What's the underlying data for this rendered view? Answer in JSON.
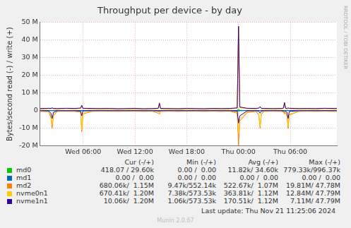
{
  "chart_data": {
    "type": "line",
    "title": "Throughput per device - by day",
    "y_label": "Bytes/second read (-) / write (+)",
    "side_text": "RRDTOOL / TOBI OETIKER",
    "last_update": "Last update: Thu Nov 21 11:25:06 2024",
    "footer": "Munin 2.0.67",
    "stats_headers": [
      "Cur (-/+)",
      "Min (-/+)",
      "Avg (-/+)",
      "Max (-/+)"
    ],
    "grid": true,
    "xlim": [
      1,
      35.4
    ],
    "xticks": [
      {
        "value": 6,
        "label": "Wed 06:00"
      },
      {
        "value": 12,
        "label": "Wed 12:00"
      },
      {
        "value": 18,
        "label": "Wed 18:00"
      },
      {
        "value": 24,
        "label": "Thu 00:00"
      },
      {
        "value": 30,
        "label": "Thu 06:00"
      }
    ],
    "ylim": [
      -20000000,
      50000000
    ],
    "yticks": [
      {
        "value": -20000000,
        "label": "-20 M"
      },
      {
        "value": -10000000,
        "label": "-10 M"
      },
      0,
      {
        "value": 10000000,
        "label": "10 M"
      },
      {
        "value": 20000000,
        "label": "20 M"
      },
      {
        "value": 30000000,
        "label": "30 M"
      },
      {
        "value": 40000000,
        "label": "40 M"
      },
      {
        "value": 50000000,
        "label": "50 M"
      }
    ],
    "x": [
      1,
      2,
      2.25,
      2.4,
      2.55,
      3,
      4,
      5,
      5.7,
      5.83,
      5.96,
      7,
      8,
      9,
      10,
      11,
      12,
      13,
      14,
      14.7,
      14.83,
      14.96,
      16,
      17,
      18,
      19,
      20,
      21,
      22,
      23,
      23.85,
      24,
      24.15,
      25,
      26,
      26.35,
      26.5,
      26.65,
      27,
      28,
      29,
      29.2,
      29.33,
      29.46,
      29.62,
      29.75,
      29.88,
      31,
      32,
      33,
      34,
      35,
      35.4
    ],
    "series": [
      {
        "name": "md0",
        "color": "#00CC00",
        "stats": [
          "418.07 / 29.60k",
          "0.00 /  0.00",
          "11.82k/ 34.60k",
          "779.33k/996.37k"
        ],
        "values": [
          30000.0,
          40000.0,
          30000.0,
          50000.0,
          30000.0,
          30000.0,
          40000.0,
          30000.0,
          40000.0,
          100000.0,
          30000.0,
          30000.0,
          40000.0,
          30000.0,
          30000.0,
          40000.0,
          30000.0,
          30000.0,
          40000.0,
          30000.0,
          80000.0,
          30000.0,
          30000.0,
          40000.0,
          30000.0,
          30000.0,
          40000.0,
          30000.0,
          30000.0,
          40000.0,
          50000.0,
          996000.0,
          100000.0,
          40000.0,
          30000.0,
          40000.0,
          80000.0,
          30000.0,
          30000.0,
          40000.0,
          30000.0,
          40000.0,
          100000.0,
          30000.0,
          30000.0,
          50000.0,
          30000.0,
          30000.0,
          40000.0,
          30000.0,
          30000.0,
          30000.0,
          30000.0
        ],
        "read": [
          -10000.0,
          -10000.0,
          -20000.0,
          -50000.0,
          -10000.0,
          -10000.0,
          -10000.0,
          -10000.0,
          -10000.0,
          -60000.0,
          -10000.0,
          -10000.0,
          -10000.0,
          -10000.0,
          -10000.0,
          -10000.0,
          -10000.0,
          -10000.0,
          -10000.0,
          -10000.0,
          -20000.0,
          -10000.0,
          -10000.0,
          -10000.0,
          -10000.0,
          -10000.0,
          -10000.0,
          -10000.0,
          -10000.0,
          -10000.0,
          -20000.0,
          -779000.0,
          -50000.0,
          -10000.0,
          -10000.0,
          -10000.0,
          -40000.0,
          -10000.0,
          -10000.0,
          -10000.0,
          -10000.0,
          -10000.0,
          -20000.0,
          -10000.0,
          -10000.0,
          -40000.0,
          -10000.0,
          -10000.0,
          -10000.0,
          -10000.0,
          -10000.0,
          -10000.0,
          -10000.0
        ]
      },
      {
        "name": "md1",
        "color": "#0066B3",
        "stats": [
          "0.00 /  0.00",
          "0.00 /  0.00",
          "0.00 /  0.00",
          "0.00 /  0.00"
        ],
        "values": [
          0,
          0,
          0,
          0,
          0,
          0,
          0,
          0,
          0,
          0,
          0,
          0,
          0,
          0,
          0,
          0,
          0,
          0,
          0,
          0,
          0,
          0,
          0,
          0,
          0,
          0,
          0,
          0,
          0,
          0,
          0,
          0,
          0,
          0,
          0,
          0,
          0,
          0,
          0,
          0,
          0,
          0,
          0,
          0,
          0,
          0,
          0,
          0,
          0,
          0,
          0,
          0,
          0
        ],
        "read": [
          0,
          0,
          0,
          0,
          0,
          0,
          0,
          0,
          0,
          0,
          0,
          0,
          0,
          0,
          0,
          0,
          0,
          0,
          0,
          0,
          0,
          0,
          0,
          0,
          0,
          0,
          0,
          0,
          0,
          0,
          0,
          0,
          0,
          0,
          0,
          0,
          0,
          0,
          0,
          0,
          0,
          0,
          0,
          0,
          0,
          0,
          0,
          0,
          0,
          0,
          0,
          0,
          0
        ]
      },
      {
        "name": "md2",
        "color": "#FF8000",
        "stats": [
          "680.06k/  1.15M",
          "9.47k/552.14k",
          "522.67k/  1.07M",
          "19.81M/ 47.78M"
        ],
        "values": [
          900000.0,
          1100000.0,
          1100000.0,
          1300000.0,
          1000000.0,
          1000000.0,
          1100000.0,
          1000000.0,
          1200000.0,
          2500000.0,
          1100000.0,
          1000000.0,
          1000000.0,
          1000000.0,
          900000.0,
          1000000.0,
          1000000.0,
          900000.0,
          1000000.0,
          1100000.0,
          3500000.0,
          1000000.0,
          1000000.0,
          900000.0,
          1000000.0,
          1000000.0,
          900000.0,
          1000000.0,
          1000000.0,
          1000000.0,
          1300000.0,
          47780000.0,
          1700000.0,
          1100000.0,
          1000000.0,
          1200000.0,
          1800000.0,
          1100000.0,
          1000000.0,
          1000000.0,
          1000000.0,
          1200000.0,
          3900000.0,
          1100000.0,
          1000000.0,
          1300000.0,
          1100000.0,
          1000000.0,
          1000000.0,
          1000000.0,
          1100000.0,
          1000000.0,
          1000000.0
        ],
        "read": [
          -500000.0,
          -600000.0,
          -4000000.0,
          -10000000.0,
          -3000000.0,
          -500000.0,
          -400000.0,
          -500000.0,
          -900000.0,
          -12000000.0,
          -2000000.0,
          -500000.0,
          -400000.0,
          -400000.0,
          -500000.0,
          -400000.0,
          -400000.0,
          -500000.0,
          -400000.0,
          -1500000.0,
          -2200000.0,
          -500000.0,
          -400000.0,
          -500000.0,
          -400000.0,
          -400000.0,
          -500000.0,
          -400000.0,
          -500000.0,
          -400000.0,
          -1500000.0,
          -19810000.0,
          -6000000.0,
          -1200000.0,
          -500000.0,
          -2500000.0,
          -10000000.0,
          -2000000.0,
          -500000.0,
          -400000.0,
          -500000.0,
          -800000.0,
          -2000000.0,
          -900000.0,
          -3500000.0,
          -10200000.0,
          -2500000.0,
          -500000.0,
          -400000.0,
          -500000.0,
          -400000.0,
          -500000.0,
          -400000.0
        ]
      },
      {
        "name": "nvme0n1",
        "color": "#FFCC00",
        "stats": [
          "670.41k/  1.20M",
          "7.38k/573.53k",
          "363.81k/  1.12M",
          "12.84M/ 47.79M"
        ],
        "values": [
          1000000.0,
          1200000.0,
          1300000.0,
          1400000.0,
          1100000.0,
          1200000.0,
          1200000.0,
          1100000.0,
          1300000.0,
          2800000.0,
          1200000.0,
          1100000.0,
          1200000.0,
          1100000.0,
          1100000.0,
          1000000.0,
          1100000.0,
          1100000.0,
          1000000.0,
          1200000.0,
          4000000.0,
          1100000.0,
          1200000.0,
          1100000.0,
          1100000.0,
          1000000.0,
          1100000.0,
          1100000.0,
          1200000.0,
          1100000.0,
          1400000.0,
          47790000.0,
          1900000.0,
          1200000.0,
          1100000.0,
          1300000.0,
          2000000.0,
          1200000.0,
          1100000.0,
          1200000.0,
          1100000.0,
          1300000.0,
          4300000.0,
          1200000.0,
          1100000.0,
          1400000.0,
          1200000.0,
          1200000.0,
          1100000.0,
          1200000.0,
          1200000.0,
          1100000.0,
          1200000.0
        ],
        "read": [
          -300000.0,
          -400000.0,
          -3000000.0,
          -8000000.0,
          -2000000.0,
          -300000.0,
          -200000.0,
          -300000.0,
          -600000.0,
          -11000000.0,
          -1500000.0,
          -300000.0,
          -200000.0,
          -200000.0,
          -300000.0,
          -200000.0,
          -200000.0,
          -300000.0,
          -200000.0,
          -600000.0,
          -1800000.0,
          -300000.0,
          -200000.0,
          -300000.0,
          -200000.0,
          -200000.0,
          -300000.0,
          -200000.0,
          -300000.0,
          -200000.0,
          -1000000.0,
          -12840000.0,
          -5000000.0,
          -600000.0,
          -300000.0,
          -2000000.0,
          -9000000.0,
          -1500000.0,
          -300000.0,
          -200000.0,
          -300000.0,
          -500000.0,
          -1500000.0,
          -600000.0,
          -3000000.0,
          -9000000.0,
          -2000000.0,
          -300000.0,
          -200000.0,
          -300000.0,
          -200000.0,
          -300000.0,
          -200000.0
        ]
      },
      {
        "name": "nvme1n1",
        "color": "#330099",
        "stats": [
          "10.06k/  1.20M",
          "1.06k/573.53k",
          "170.51k/  1.12M",
          "7.11M/ 47.79M"
        ],
        "values": [
          1100000.0,
          1300000.0,
          1200000.0,
          1500000.0,
          1200000.0,
          1100000.0,
          1300000.0,
          1200000.0,
          1400000.0,
          3000000.0,
          1300000.0,
          1200000.0,
          1100000.0,
          1200000.0,
          1000000.0,
          1100000.0,
          1200000.0,
          1000000.0,
          1100000.0,
          1300000.0,
          4300000.0,
          1200000.0,
          1100000.0,
          1000000.0,
          1200000.0,
          1100000.0,
          1000000.0,
          1200000.0,
          1100000.0,
          1200000.0,
          1500000.0,
          47790000.0,
          2000000.0,
          1300000.0,
          1200000.0,
          1400000.0,
          2200000.0,
          1300000.0,
          1200000.0,
          1100000.0,
          1200000.0,
          1400000.0,
          4600000.0,
          1300000.0,
          1200000.0,
          1500000.0,
          1300000.0,
          1100000.0,
          1200000.0,
          1100000.0,
          1300000.0,
          1200000.0,
          1200000.0
        ],
        "read": [
          -100000.0,
          -200000.0,
          -1500000.0,
          -4500000.0,
          -1000000.0,
          -100000.0,
          -150000.0,
          -100000.0,
          -300000.0,
          -3000000.0,
          -200000.0,
          -100000.0,
          -50000.0,
          -100000.0,
          -80000.0,
          -100000.0,
          -50000.0,
          -100000.0,
          -100000.0,
          -200000.0,
          -500000.0,
          -100000.0,
          -50000.0,
          -100000.0,
          -80000.0,
          -50000.0,
          -100000.0,
          -50000.0,
          -100000.0,
          -100000.0,
          -300000.0,
          -7110000.0,
          -3000000.0,
          -200000.0,
          -100000.0,
          -400000.0,
          -1500000.0,
          -300000.0,
          -100000.0,
          -50000.0,
          -100000.0,
          -300000.0,
          -800000.0,
          -200000.0,
          -1000000.0,
          -4500000.0,
          -500000.0,
          -100000.0,
          -80000.0,
          -100000.0,
          -50000.0,
          -100000.0,
          -100000.0
        ]
      }
    ]
  }
}
